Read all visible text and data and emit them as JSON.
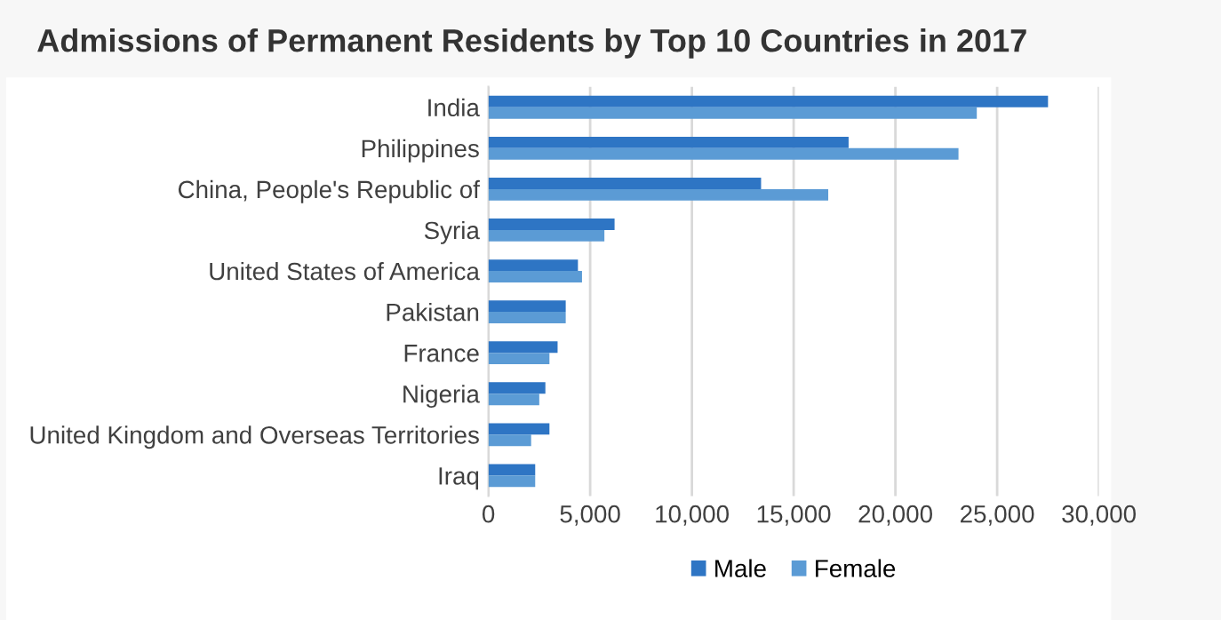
{
  "chart_data": {
    "type": "bar",
    "orientation": "horizontal",
    "title": "Admissions of Permanent Residents by Top 10 Countries in 2017",
    "categories": [
      "India",
      "Philippines",
      "China, People's Republic of",
      "Syria",
      "United States of America",
      "Pakistan",
      "France",
      "Nigeria",
      "United Kingdom and Overseas Territories",
      "Iraq"
    ],
    "series": [
      {
        "name": "Male",
        "color": "#2e75c4",
        "values": [
          27500,
          17700,
          13400,
          6200,
          4400,
          3800,
          3400,
          2800,
          3000,
          2300
        ]
      },
      {
        "name": "Female",
        "color": "#5b9bd5",
        "values": [
          24000,
          23100,
          16700,
          5700,
          4600,
          3800,
          3000,
          2500,
          2100,
          2300
        ]
      }
    ],
    "xlim": [
      0,
      30000
    ],
    "xticks": [
      {
        "value": 0,
        "label": "0"
      },
      {
        "value": 5000,
        "label": "5,000"
      },
      {
        "value": 10000,
        "label": "10,000"
      },
      {
        "value": 15000,
        "label": "15,000"
      },
      {
        "value": 20000,
        "label": "20,000"
      },
      {
        "value": 25000,
        "label": "25,000"
      },
      {
        "value": 30000,
        "label": "30,000"
      }
    ],
    "grid": "x",
    "legend": "bottom"
  }
}
